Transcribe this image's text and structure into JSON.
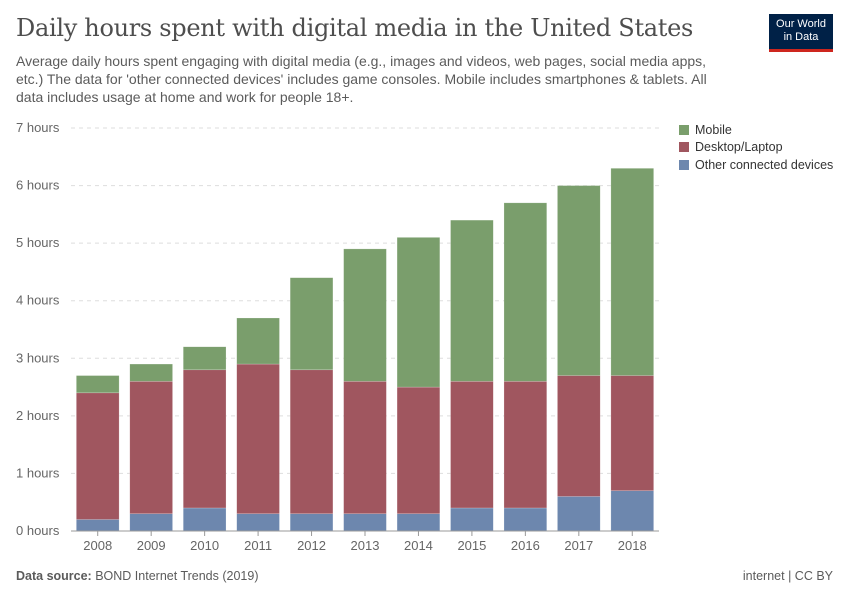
{
  "title": "Daily hours spent with digital media in the United States",
  "subtitle": "Average daily hours spent engaging with digital media (e.g., images and videos, web pages, social media apps, etc.) The data for 'other connected devices' includes game consoles. Mobile includes smartphones & tablets. All data includes usage at home and work for people 18+.",
  "logo": {
    "line1": "Our World",
    "line2": "in Data"
  },
  "footer": {
    "source_label": "Data source:",
    "source": "BOND Internet Trends (2019)",
    "license": "internet | CC BY"
  },
  "chart_data": {
    "type": "bar",
    "stacked": true,
    "categories": [
      "2008",
      "2009",
      "2010",
      "2011",
      "2012",
      "2013",
      "2014",
      "2015",
      "2016",
      "2017",
      "2018"
    ],
    "series": [
      {
        "name": "Other connected devices",
        "color": "#6d87ae",
        "values": [
          0.2,
          0.3,
          0.4,
          0.3,
          0.3,
          0.3,
          0.3,
          0.4,
          0.4,
          0.6,
          0.7
        ]
      },
      {
        "name": "Desktop/Laptop",
        "color": "#a0565f",
        "values": [
          2.2,
          2.3,
          2.4,
          2.6,
          2.5,
          2.3,
          2.2,
          2.2,
          2.2,
          2.1,
          2.0
        ]
      },
      {
        "name": "Mobile",
        "color": "#7a9e6c",
        "values": [
          0.3,
          0.3,
          0.4,
          0.8,
          1.6,
          2.3,
          2.6,
          2.8,
          3.1,
          3.3,
          3.6
        ]
      }
    ],
    "legend_order": [
      "Mobile",
      "Desktop/Laptop",
      "Other connected devices"
    ],
    "yticks": [
      "0 hours",
      "1 hours",
      "2 hours",
      "3 hours",
      "4 hours",
      "5 hours",
      "6 hours",
      "7 hours"
    ],
    "ylim": [
      0,
      7
    ],
    "grid": true,
    "legend_position": "top-right"
  }
}
